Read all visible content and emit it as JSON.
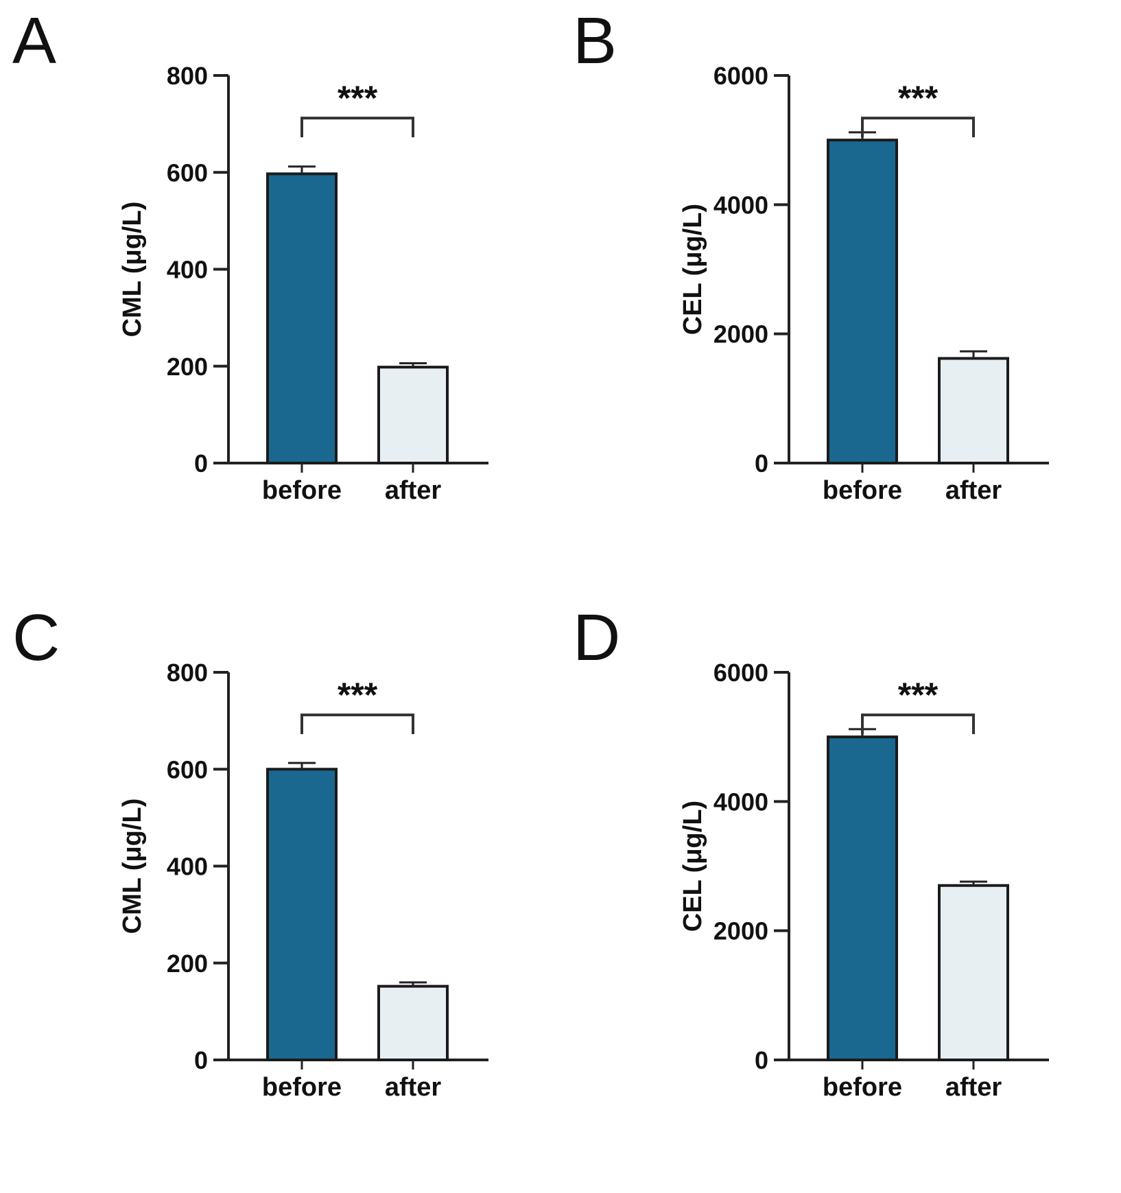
{
  "chart_data": [
    {
      "panel": "A",
      "type": "bar",
      "categories": [
        "before",
        "after"
      ],
      "values": [
        597,
        198
      ],
      "errors": [
        15,
        8
      ],
      "ylabel": "CML (μg/L)",
      "ylim": [
        0,
        800
      ],
      "yticks": [
        "0",
        "200",
        "400",
        "600",
        "800"
      ],
      "significance": "***",
      "colors": [
        "#1a6890",
        "#e8eff2"
      ]
    },
    {
      "panel": "B",
      "type": "bar",
      "categories": [
        "before",
        "after"
      ],
      "values": [
        5000,
        1620
      ],
      "errors": [
        120,
        110
      ],
      "ylabel": "CEL (μg/L)",
      "ylim": [
        0,
        6000
      ],
      "yticks": [
        "0",
        "2000",
        "4000",
        "6000"
      ],
      "significance": "***",
      "colors": [
        "#1a6890",
        "#e8eff2"
      ]
    },
    {
      "panel": "C",
      "type": "bar",
      "categories": [
        "before",
        "after"
      ],
      "values": [
        600,
        152
      ],
      "errors": [
        13,
        8
      ],
      "ylabel": "CML (μg/L)",
      "ylim": [
        0,
        800
      ],
      "yticks": [
        "0",
        "200",
        "400",
        "600",
        "800"
      ],
      "significance": "***",
      "colors": [
        "#1a6890",
        "#e8eff2"
      ]
    },
    {
      "panel": "D",
      "type": "bar",
      "categories": [
        "before",
        "after"
      ],
      "values": [
        5000,
        2700
      ],
      "errors": [
        120,
        60
      ],
      "ylabel": "CEL (μg/L)",
      "ylim": [
        0,
        6000
      ],
      "yticks": [
        "0",
        "2000",
        "4000",
        "6000"
      ],
      "significance": "***",
      "colors": [
        "#1a6890",
        "#e8eff2"
      ]
    }
  ]
}
